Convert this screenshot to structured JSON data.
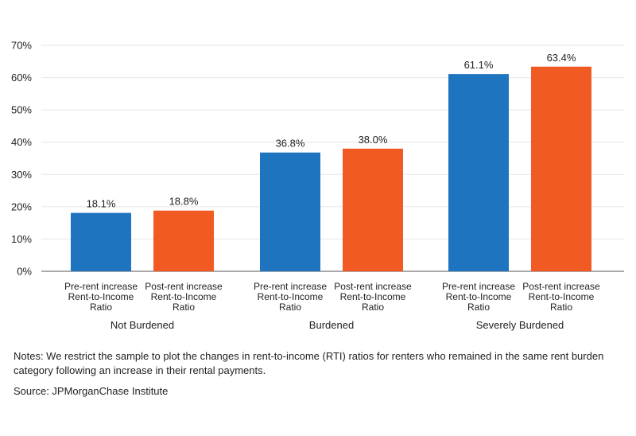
{
  "chart_data": {
    "type": "bar",
    "title": "",
    "xlabel": "",
    "ylabel": "",
    "ylim": [
      0,
      70
    ],
    "yticks": [
      0,
      10,
      20,
      30,
      40,
      50,
      60,
      70
    ],
    "ytick_labels": [
      "0%",
      "10%",
      "20%",
      "30%",
      "40%",
      "50%",
      "60%",
      "70%"
    ],
    "grid": true,
    "groups": [
      "Not Burdened",
      "Burdened",
      "Severely Burdened"
    ],
    "series": [
      {
        "name": "Pre-rent increase Rent-to-Income Ratio",
        "label_lines": [
          "Pre-rent increase",
          "Rent-to-Income",
          "Ratio"
        ],
        "color": "#1f74c0",
        "values": [
          18.1,
          36.8,
          61.1
        ],
        "value_labels": [
          "18.1%",
          "36.8%",
          "61.1%"
        ]
      },
      {
        "name": "Post-rent increase Rent-to-Income Ratio",
        "label_lines": [
          "Post-rent increase",
          "Rent-to-Income",
          "Ratio"
        ],
        "color": "#f15a22",
        "values": [
          18.8,
          38.0,
          63.4
        ],
        "value_labels": [
          "18.8%",
          "38.0%",
          "63.4%"
        ]
      }
    ]
  },
  "footer": {
    "notes": "Notes: We restrict the sample to plot the changes in rent-to-income (RTI) ratios for renters who remained in the same rent burden category following an increase in their rental payments.",
    "source": "Source: JPMorganChase Institute"
  }
}
